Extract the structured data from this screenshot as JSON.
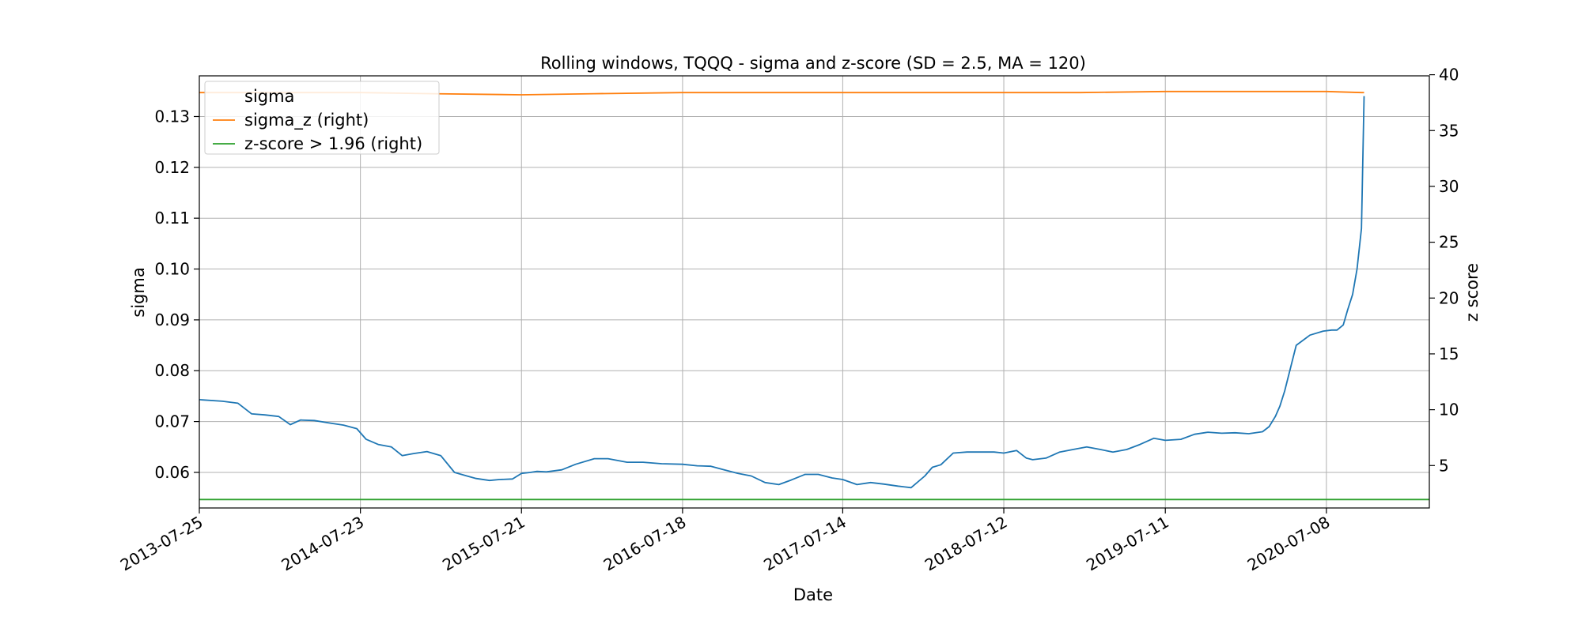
{
  "chart_data": {
    "type": "line",
    "title": "Rolling windows, TQQQ - sigma and z-score (SD = 2.5, MA = 120)",
    "xlabel": "Date",
    "ylabel": "sigma",
    "ylabel_right": "z score",
    "x_ticks": [
      "2013-07-25",
      "2014-07-23",
      "2015-07-21",
      "2016-07-18",
      "2017-07-14",
      "2018-07-12",
      "2019-07-11",
      "2020-07-08"
    ],
    "x_range": [
      "2013-07-25",
      "2021-02-25"
    ],
    "ylim": [
      0.053,
      0.138
    ],
    "ylim_right": [
      1.2,
      39.9
    ],
    "y_ticks": [
      0.06,
      0.07,
      0.08,
      0.09,
      0.1,
      0.11,
      0.12,
      0.13
    ],
    "y_tick_labels": [
      "0.06",
      "0.07",
      "0.08",
      "0.09",
      "0.10",
      "0.11",
      "0.12",
      "0.13"
    ],
    "y_ticks_right": [
      5,
      10,
      15,
      20,
      25,
      30,
      35,
      40
    ],
    "grid": true,
    "legend_position": "top-left",
    "series": [
      {
        "name": "sigma",
        "axis": "left",
        "color": "#1f77b4",
        "x": [
          "2013-07-25",
          "2013-09-15",
          "2013-10-20",
          "2013-11-20",
          "2013-12-20",
          "2014-01-20",
          "2014-02-15",
          "2014-03-10",
          "2014-04-10",
          "2014-05-15",
          "2014-06-15",
          "2014-07-15",
          "2014-08-05",
          "2014-09-01",
          "2014-10-01",
          "2014-10-25",
          "2014-11-20",
          "2014-12-20",
          "2015-01-20",
          "2015-02-20",
          "2015-03-20",
          "2015-04-10",
          "2015-05-10",
          "2015-06-01",
          "2015-07-01",
          "2015-07-21",
          "2015-08-10",
          "2015-08-25",
          "2015-09-15",
          "2015-10-20",
          "2015-11-20",
          "2016-01-01",
          "2016-02-01",
          "2016-03-15",
          "2016-04-20",
          "2016-06-01",
          "2016-07-18",
          "2016-08-20",
          "2016-09-20",
          "2016-10-20",
          "2016-11-20",
          "2016-12-20",
          "2017-01-20",
          "2017-02-20",
          "2017-03-20",
          "2017-04-20",
          "2017-05-20",
          "2017-06-20",
          "2017-07-14",
          "2017-08-15",
          "2017-09-15",
          "2017-10-15",
          "2017-11-15",
          "2017-12-15",
          "2018-01-15",
          "2018-02-01",
          "2018-02-20",
          "2018-03-20",
          "2018-04-20",
          "2018-05-20",
          "2018-06-20",
          "2018-07-12",
          "2018-08-10",
          "2018-09-01",
          "2018-09-15",
          "2018-10-15",
          "2018-11-15",
          "2018-12-15",
          "2019-01-15",
          "2019-02-15",
          "2019-03-15",
          "2019-04-15",
          "2019-05-15",
          "2019-06-15",
          "2019-07-11",
          "2019-08-15",
          "2019-09-15",
          "2019-10-15",
          "2019-11-15",
          "2019-12-15",
          "2020-01-15",
          "2020-02-15",
          "2020-03-01",
          "2020-03-15",
          "2020-03-25",
          "2020-04-05",
          "2020-05-01",
          "2020-06-01",
          "2020-07-01",
          "2020-07-20",
          "2020-08-01",
          "2020-08-15",
          "2020-08-25",
          "2020-09-05",
          "2020-09-15",
          "2020-09-25",
          "2020-10-01"
        ],
        "y": [
          0.0743,
          0.074,
          0.0736,
          0.0715,
          0.0713,
          0.071,
          0.0694,
          0.0703,
          0.0702,
          0.0697,
          0.0693,
          0.0686,
          0.0665,
          0.0655,
          0.065,
          0.0633,
          0.0637,
          0.0641,
          0.0633,
          0.06,
          0.0593,
          0.0588,
          0.0584,
          0.0586,
          0.0587,
          0.0598,
          0.06,
          0.0602,
          0.0601,
          0.0605,
          0.0616,
          0.0627,
          0.0627,
          0.062,
          0.062,
          0.0617,
          0.0616,
          0.0613,
          0.0612,
          0.0605,
          0.0598,
          0.0593,
          0.058,
          0.0576,
          0.0585,
          0.0596,
          0.0596,
          0.0589,
          0.0586,
          0.0576,
          0.058,
          0.0577,
          0.0573,
          0.057,
          0.0593,
          0.061,
          0.0615,
          0.0638,
          0.064,
          0.064,
          0.064,
          0.0638,
          0.0643,
          0.0628,
          0.0625,
          0.0628,
          0.064,
          0.0645,
          0.065,
          0.0645,
          0.064,
          0.0645,
          0.0655,
          0.0667,
          0.0663,
          0.0665,
          0.0675,
          0.0679,
          0.0677,
          0.0678,
          0.0676,
          0.068,
          0.069,
          0.071,
          0.073,
          0.076,
          0.085,
          0.087,
          0.0878,
          0.088,
          0.088,
          0.089,
          0.092,
          0.095,
          0.1,
          0.108,
          0.134
        ]
      },
      {
        "name": "sigma_z (right)",
        "axis": "right",
        "color": "#ff7f0e",
        "x": [
          "2013-07-25",
          "2014-01-01",
          "2014-07-23",
          "2015-01-01",
          "2015-07-21",
          "2016-01-01",
          "2016-07-18",
          "2017-01-01",
          "2017-07-14",
          "2018-01-01",
          "2018-07-12",
          "2019-01-01",
          "2019-07-11",
          "2020-01-01",
          "2020-07-08",
          "2020-09-25",
          "2020-10-01"
        ],
        "y": [
          38.4,
          38.4,
          38.4,
          38.3,
          38.2,
          38.3,
          38.4,
          38.4,
          38.4,
          38.4,
          38.4,
          38.4,
          38.5,
          38.5,
          38.5,
          38.4,
          38.4
        ]
      },
      {
        "name": "z-score > 1.96 (right)",
        "axis": "right",
        "color": "#2ca02c",
        "x": [
          "2013-07-25",
          "2021-02-25"
        ],
        "y": [
          1.96,
          1.96
        ]
      }
    ]
  }
}
